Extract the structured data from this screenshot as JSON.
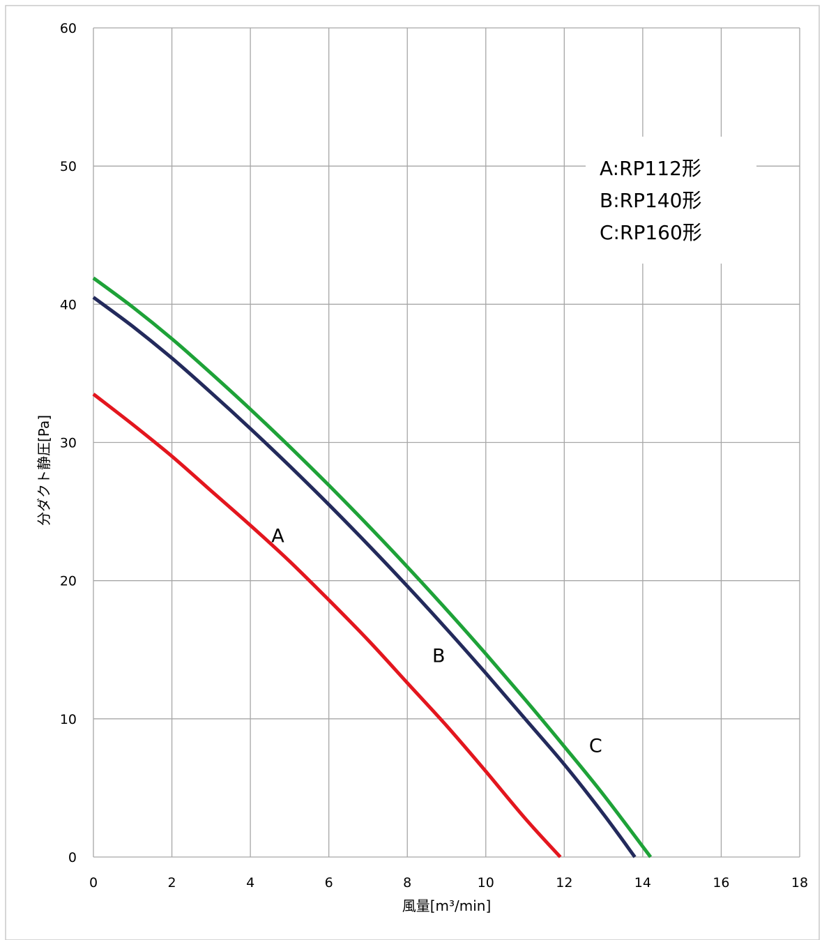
{
  "chart_data": {
    "type": "line",
    "title": "",
    "xlabel": "風量[m³/min]",
    "ylabel": "分ダクト静圧[Pa]",
    "xlim": [
      0,
      18
    ],
    "ylim": [
      0,
      60
    ],
    "xticks": [
      0,
      2,
      4,
      6,
      8,
      10,
      12,
      14,
      16,
      18
    ],
    "yticks": [
      0,
      10,
      20,
      30,
      40,
      50,
      60
    ],
    "grid": true,
    "legend": {
      "placement": "top-right",
      "entries": [
        "A:RP112形",
        "B:RP140形",
        "C:RP160形"
      ]
    },
    "series": [
      {
        "name": "A",
        "color": "#e3161e",
        "x": [
          0,
          1,
          2,
          3,
          4,
          5,
          6,
          7,
          8,
          9,
          10,
          11,
          11.9
        ],
        "y": [
          33.5,
          31.3,
          29.0,
          26.5,
          24.0,
          21.4,
          18.6,
          15.7,
          12.6,
          9.5,
          6.2,
          2.8,
          0
        ]
      },
      {
        "name": "B",
        "color": "#232a5c",
        "x": [
          0,
          1,
          2,
          3,
          4,
          5,
          6,
          7,
          8,
          9,
          10,
          11,
          12,
          13,
          13.8
        ],
        "y": [
          40.5,
          38.4,
          36.1,
          33.6,
          31.0,
          28.3,
          25.5,
          22.6,
          19.6,
          16.5,
          13.3,
          10.0,
          6.7,
          3.1,
          0
        ]
      },
      {
        "name": "C",
        "color": "#1ea238",
        "x": [
          0,
          1,
          2,
          3,
          4,
          5,
          6,
          7,
          8,
          9,
          10,
          11,
          12,
          13,
          14.2
        ],
        "y": [
          41.9,
          39.8,
          37.5,
          35.0,
          32.4,
          29.7,
          26.9,
          24.0,
          21.0,
          17.9,
          14.7,
          11.4,
          8.0,
          4.5,
          0
        ]
      }
    ],
    "annotations": [
      {
        "text": "A",
        "x": 4.7,
        "y": 23.3
      },
      {
        "text": "B",
        "x": 8.8,
        "y": 14.6
      },
      {
        "text": "C",
        "x": 12.8,
        "y": 8.1
      }
    ]
  }
}
